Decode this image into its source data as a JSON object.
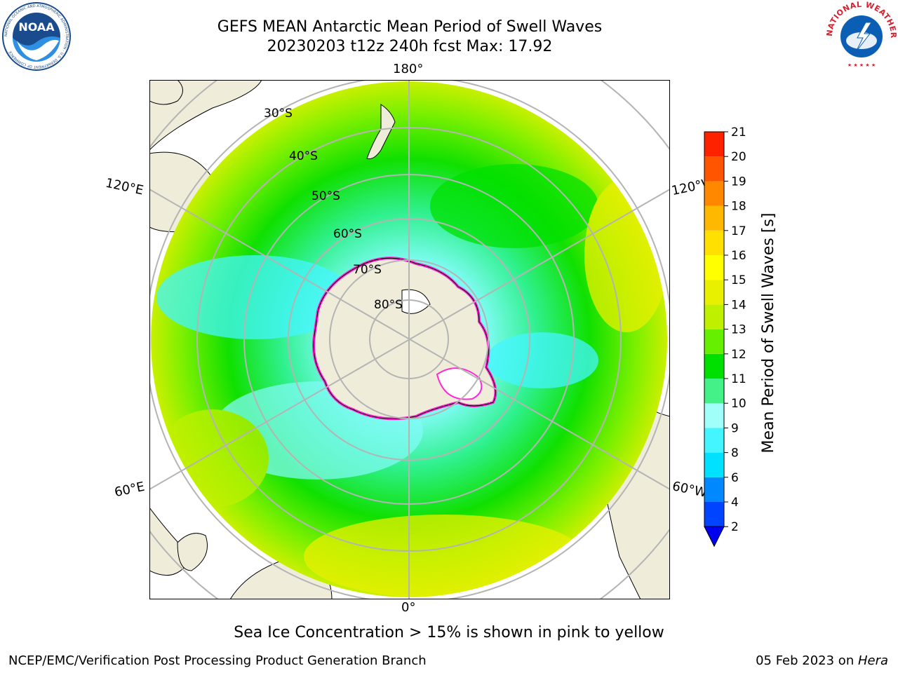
{
  "title": {
    "line1": "GEFS MEAN Antarctic Mean Period of Swell Waves",
    "line2": "20230203 t12z 240h fcst   Max: 17.92"
  },
  "logos": {
    "left": {
      "text": "NOAA",
      "ring_text": "NATIONAL OCEANIC AND ATMOSPHERIC ADMINISTRATION · U.S. DEPARTMENT OF COMMERCE",
      "color": "#1a4b8c"
    },
    "right": {
      "ring_text": "NATIONAL WEATHER SERVICE",
      "color": "#d7202f"
    }
  },
  "map": {
    "longitude_labels": [
      "180°",
      "120°W",
      "120°E",
      "60°W",
      "60°E",
      "0°"
    ],
    "latitude_labels": [
      "30°S",
      "40°S",
      "50°S",
      "60°S",
      "70°S",
      "80°S"
    ],
    "colors": {
      "land": "#efedda",
      "grid": "#b4b4b4",
      "coast": "#000000"
    }
  },
  "colorbar": {
    "label": "Mean Period of Swell Waves [s]",
    "ticks": [
      "2",
      "4",
      "6",
      "8",
      "9",
      "10",
      "11",
      "12",
      "13",
      "14",
      "15",
      "16",
      "17",
      "18",
      "19",
      "20",
      "21"
    ],
    "colors": [
      "#0044ff",
      "#0088ff",
      "#00e0ff",
      "#44f5ff",
      "#a0fff8",
      "#44f088",
      "#00e000",
      "#66f000",
      "#bff000",
      "#e8f000",
      "#ffff00",
      "#ffe000",
      "#ffb800",
      "#ff8800",
      "#ff5500",
      "#ff2200",
      "#ff0000"
    ],
    "under_color": "#0000ee"
  },
  "note": "Sea Ice Concentration > 15% is shown in pink to yellow",
  "footer": {
    "left": "NCEP/EMC/Verification Post Processing Product Generation Branch",
    "date": "05 Feb 2023 on ",
    "host": "Hera"
  }
}
